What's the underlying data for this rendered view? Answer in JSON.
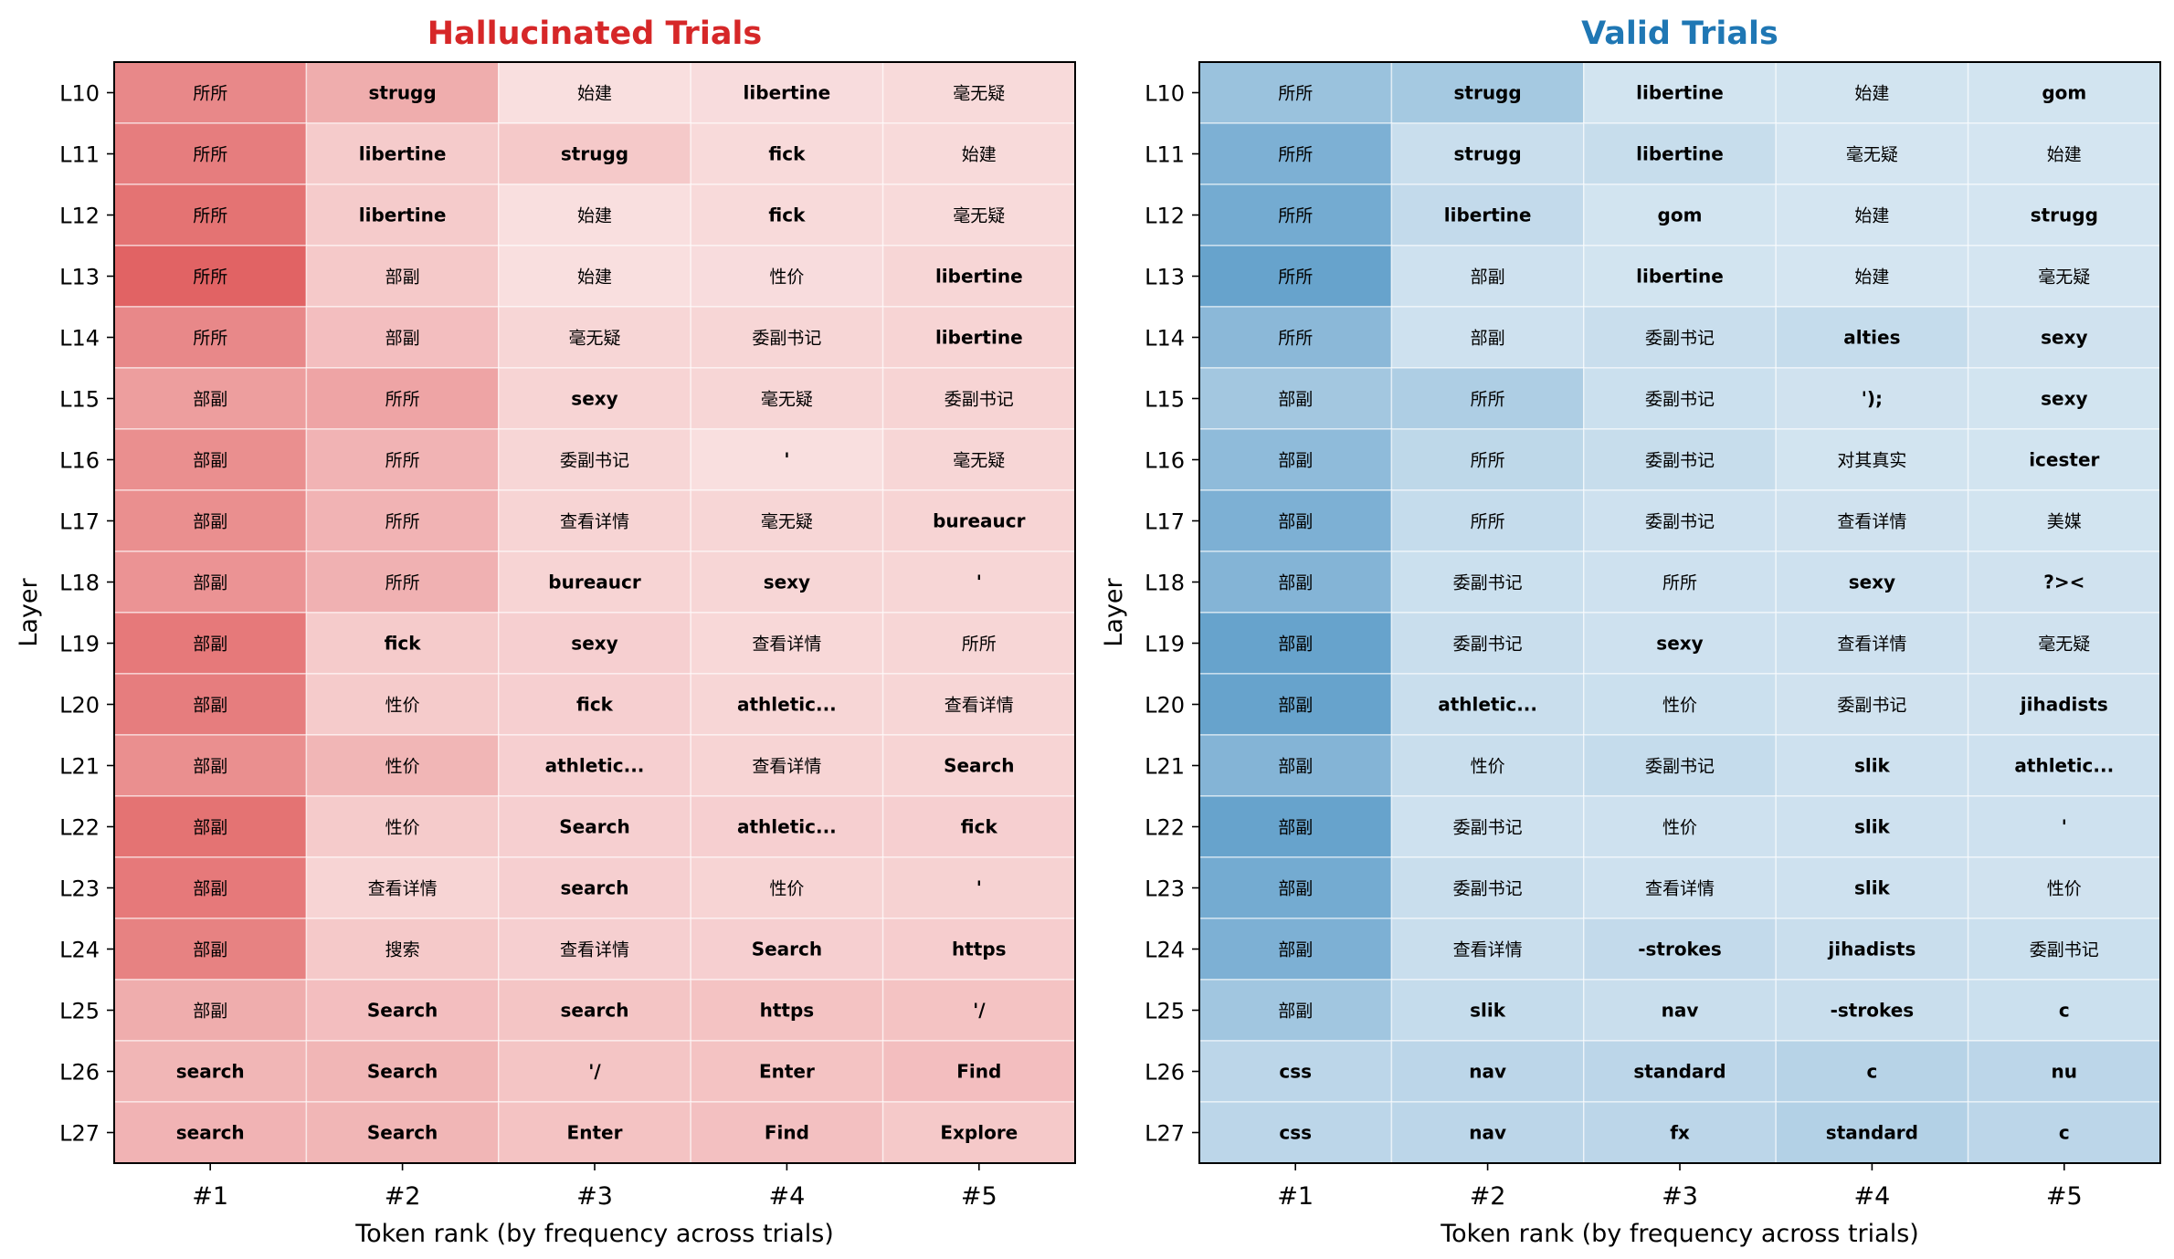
{
  "chart_data": [
    {
      "type": "heatmap",
      "title": "Hallucinated Trials",
      "title_color": "#d62728",
      "palette": "reds",
      "base_color": "#d62728",
      "xlabel": "Token rank (by frequency across trials)",
      "ylabel": "Layer",
      "columns": [
        "#1",
        "#2",
        "#3",
        "#4",
        "#5"
      ],
      "rows": [
        "L10",
        "L11",
        "L12",
        "L13",
        "L14",
        "L15",
        "L16",
        "L17",
        "L18",
        "L19",
        "L20",
        "L21",
        "L22",
        "L23",
        "L24",
        "L25",
        "L26",
        "L27"
      ],
      "tokens": [
        [
          "所所",
          "strugg",
          "始建",
          "libertine",
          "毫无疑"
        ],
        [
          "所所",
          "libertine",
          "strugg",
          "fick",
          "始建"
        ],
        [
          "所所",
          "libertine",
          "始建",
          "fick",
          "毫无疑"
        ],
        [
          "所所",
          "部副",
          "始建",
          "性价",
          "libertine"
        ],
        [
          "所所",
          "部副",
          "毫无疑",
          "委副书记",
          "libertine"
        ],
        [
          "部副",
          "所所",
          "sexy",
          "毫无疑",
          "委副书记"
        ],
        [
          "部副",
          "所所",
          "委副书记",
          "'",
          "毫无疑"
        ],
        [
          "部副",
          "所所",
          "查看详情",
          "毫无疑",
          "bureaucr"
        ],
        [
          "部副",
          "所所",
          "bureaucr",
          "sexy",
          "'"
        ],
        [
          "部副",
          "fick",
          "sexy",
          "查看详情",
          "所所"
        ],
        [
          "部副",
          "性价",
          "fick",
          "athletic...",
          "查看详情"
        ],
        [
          "部副",
          "性价",
          "athletic...",
          "查看详情",
          "Search"
        ],
        [
          "部副",
          "性价",
          "Search",
          "athletic...",
          "fick"
        ],
        [
          "部副",
          "查看详情",
          "search",
          "性价",
          "'"
        ],
        [
          "部副",
          "搜索",
          "查看详情",
          "Search",
          "https"
        ],
        [
          "部副",
          "Search",
          "search",
          "https",
          "'/"
        ],
        [
          "search",
          "Search",
          "'/",
          "Enter",
          "Find"
        ],
        [
          "search",
          "Search",
          "Enter",
          "Find",
          "Explore"
        ]
      ],
      "values": [
        [
          0.55,
          0.38,
          0.15,
          0.16,
          0.17
        ],
        [
          0.6,
          0.24,
          0.25,
          0.17,
          0.17
        ],
        [
          0.65,
          0.24,
          0.15,
          0.17,
          0.17
        ],
        [
          0.72,
          0.25,
          0.15,
          0.16,
          0.19
        ],
        [
          0.55,
          0.3,
          0.19,
          0.19,
          0.2
        ],
        [
          0.45,
          0.42,
          0.2,
          0.19,
          0.2
        ],
        [
          0.52,
          0.35,
          0.19,
          0.15,
          0.19
        ],
        [
          0.52,
          0.35,
          0.2,
          0.19,
          0.2
        ],
        [
          0.5,
          0.36,
          0.2,
          0.19,
          0.19
        ],
        [
          0.62,
          0.24,
          0.22,
          0.18,
          0.19
        ],
        [
          0.6,
          0.24,
          0.22,
          0.19,
          0.19
        ],
        [
          0.52,
          0.34,
          0.22,
          0.2,
          0.2
        ],
        [
          0.65,
          0.24,
          0.22,
          0.22,
          0.22
        ],
        [
          0.62,
          0.2,
          0.22,
          0.2,
          0.21
        ],
        [
          0.58,
          0.25,
          0.22,
          0.22,
          0.23
        ],
        [
          0.38,
          0.3,
          0.27,
          0.28,
          0.28
        ],
        [
          0.34,
          0.34,
          0.27,
          0.28,
          0.3
        ],
        [
          0.35,
          0.34,
          0.28,
          0.29,
          0.25
        ]
      ]
    },
    {
      "type": "heatmap",
      "title": "Valid Trials",
      "title_color": "#1f77b4",
      "palette": "blues",
      "base_color": "#1f77b4",
      "xlabel": "Token rank (by frequency across trials)",
      "ylabel": "Layer",
      "columns": [
        "#1",
        "#2",
        "#3",
        "#4",
        "#5"
      ],
      "rows": [
        "L10",
        "L11",
        "L12",
        "L13",
        "L14",
        "L15",
        "L16",
        "L17",
        "L18",
        "L19",
        "L20",
        "L21",
        "L22",
        "L23",
        "L24",
        "L25",
        "L26",
        "L27"
      ],
      "tokens": [
        [
          "所所",
          "strugg",
          "libertine",
          "始建",
          "gom"
        ],
        [
          "所所",
          "strugg",
          "libertine",
          "毫无疑",
          "始建"
        ],
        [
          "所所",
          "libertine",
          "gom",
          "始建",
          "strugg"
        ],
        [
          "所所",
          "部副",
          "libertine",
          "始建",
          "毫无疑"
        ],
        [
          "所所",
          "部副",
          "委副书记",
          "alties",
          "sexy"
        ],
        [
          "部副",
          "所所",
          "委副书记",
          "');",
          "sexy"
        ],
        [
          "部副",
          "所所",
          "委副书记",
          "对其真实",
          "icester"
        ],
        [
          "部副",
          "所所",
          "委副书记",
          "查看详情",
          "美媒"
        ],
        [
          "部副",
          "委副书记",
          "所所",
          "sexy",
          "?><"
        ],
        [
          "部副",
          "委副书记",
          "sexy",
          "查看详情",
          "毫无疑"
        ],
        [
          "部副",
          "athletic...",
          "性价",
          "委副书记",
          "jihadists"
        ],
        [
          "部副",
          "性价",
          "委副书记",
          "slik",
          "athletic..."
        ],
        [
          "部副",
          "委副书记",
          "性价",
          "slik",
          "'"
        ],
        [
          "部副",
          "委副书记",
          "查看详情",
          "slik",
          "性价"
        ],
        [
          "部副",
          "查看详情",
          "-strokes",
          "jihadists",
          "委副书记"
        ],
        [
          "部副",
          "slik",
          "nav",
          "-strokes",
          "c"
        ],
        [
          "css",
          "nav",
          "standard",
          "c",
          "nu"
        ],
        [
          "css",
          "nav",
          "fx",
          "standard",
          "c"
        ]
      ],
      "values": [
        [
          0.45,
          0.4,
          0.2,
          0.2,
          0.2
        ],
        [
          0.58,
          0.24,
          0.25,
          0.19,
          0.19
        ],
        [
          0.62,
          0.27,
          0.2,
          0.19,
          0.19
        ],
        [
          0.68,
          0.22,
          0.2,
          0.19,
          0.19
        ],
        [
          0.52,
          0.22,
          0.24,
          0.26,
          0.21
        ],
        [
          0.41,
          0.36,
          0.23,
          0.21,
          0.2
        ],
        [
          0.5,
          0.29,
          0.25,
          0.2,
          0.2
        ],
        [
          0.58,
          0.26,
          0.22,
          0.21,
          0.2
        ],
        [
          0.55,
          0.23,
          0.22,
          0.22,
          0.21
        ],
        [
          0.68,
          0.24,
          0.22,
          0.22,
          0.21
        ],
        [
          0.68,
          0.24,
          0.23,
          0.21,
          0.21
        ],
        [
          0.55,
          0.24,
          0.26,
          0.22,
          0.22
        ],
        [
          0.68,
          0.22,
          0.22,
          0.22,
          0.22
        ],
        [
          0.62,
          0.24,
          0.22,
          0.22,
          0.21
        ],
        [
          0.58,
          0.24,
          0.27,
          0.24,
          0.23
        ],
        [
          0.42,
          0.26,
          0.24,
          0.24,
          0.23
        ],
        [
          0.3,
          0.3,
          0.3,
          0.32,
          0.3
        ],
        [
          0.3,
          0.3,
          0.3,
          0.34,
          0.3
        ]
      ]
    }
  ]
}
